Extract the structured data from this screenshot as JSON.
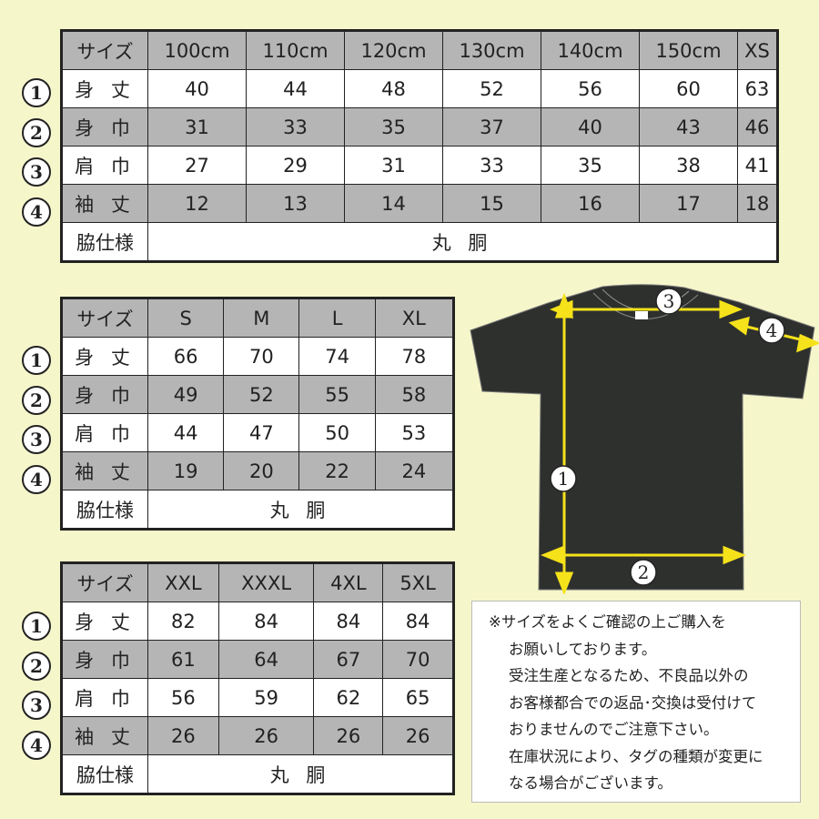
{
  "tables": [
    {
      "header": [
        "サイズ",
        "100cm",
        "110cm",
        "120cm",
        "130cm",
        "140cm",
        "150cm",
        "XS"
      ],
      "rows": [
        {
          "marker": "1",
          "label": "身 丈",
          "values": [
            "40",
            "44",
            "48",
            "52",
            "56",
            "60",
            "63"
          ]
        },
        {
          "marker": "2",
          "label": "身 巾",
          "values": [
            "31",
            "33",
            "35",
            "37",
            "40",
            "43",
            "46"
          ]
        },
        {
          "marker": "3",
          "label": "肩 巾",
          "values": [
            "27",
            "29",
            "31",
            "33",
            "35",
            "38",
            "41"
          ]
        },
        {
          "marker": "4",
          "label": "袖 丈",
          "values": [
            "12",
            "13",
            "14",
            "15",
            "16",
            "17",
            "18"
          ]
        }
      ],
      "side_label": "脇仕様",
      "side_value": "丸 胴"
    },
    {
      "header": [
        "サイズ",
        "S",
        "M",
        "L",
        "XL"
      ],
      "rows": [
        {
          "marker": "1",
          "label": "身 丈",
          "values": [
            "66",
            "70",
            "74",
            "78"
          ]
        },
        {
          "marker": "2",
          "label": "身 巾",
          "values": [
            "49",
            "52",
            "55",
            "58"
          ]
        },
        {
          "marker": "3",
          "label": "肩 巾",
          "values": [
            "44",
            "47",
            "50",
            "53"
          ]
        },
        {
          "marker": "4",
          "label": "袖 丈",
          "values": [
            "19",
            "20",
            "22",
            "24"
          ]
        }
      ],
      "side_label": "脇仕様",
      "side_value": "丸 胴"
    },
    {
      "header": [
        "サイズ",
        "XXL",
        "XXXL",
        "4XL",
        "5XL"
      ],
      "rows": [
        {
          "marker": "1",
          "label": "身 丈",
          "values": [
            "82",
            "84",
            "84",
            "84"
          ]
        },
        {
          "marker": "2",
          "label": "身 巾",
          "values": [
            "61",
            "64",
            "67",
            "70"
          ]
        },
        {
          "marker": "3",
          "label": "肩 巾",
          "values": [
            "56",
            "59",
            "62",
            "65"
          ]
        },
        {
          "marker": "4",
          "label": "袖 丈",
          "values": [
            "26",
            "26",
            "26",
            "26"
          ]
        }
      ],
      "side_label": "脇仕様",
      "side_value": "丸 胴"
    }
  ],
  "diagram": {
    "markers": [
      "1",
      "2",
      "3",
      "4"
    ],
    "shirt_color": "#2e302e",
    "arrow_color": "#f5e21a"
  },
  "note": {
    "lines": [
      "※サイズをよくご確認の上ご購入を",
      "お願いしております。",
      "受注生産となるため、不良品以外の",
      "お客様都合での返品･交換は受付けて",
      "おりませんのでご注意下さい。",
      "在庫状況により、タグの種類が変更に",
      "なる場合がございます。"
    ]
  },
  "colors": {
    "background": "#f6f6cb",
    "header_gray": "#b5b5b5"
  }
}
